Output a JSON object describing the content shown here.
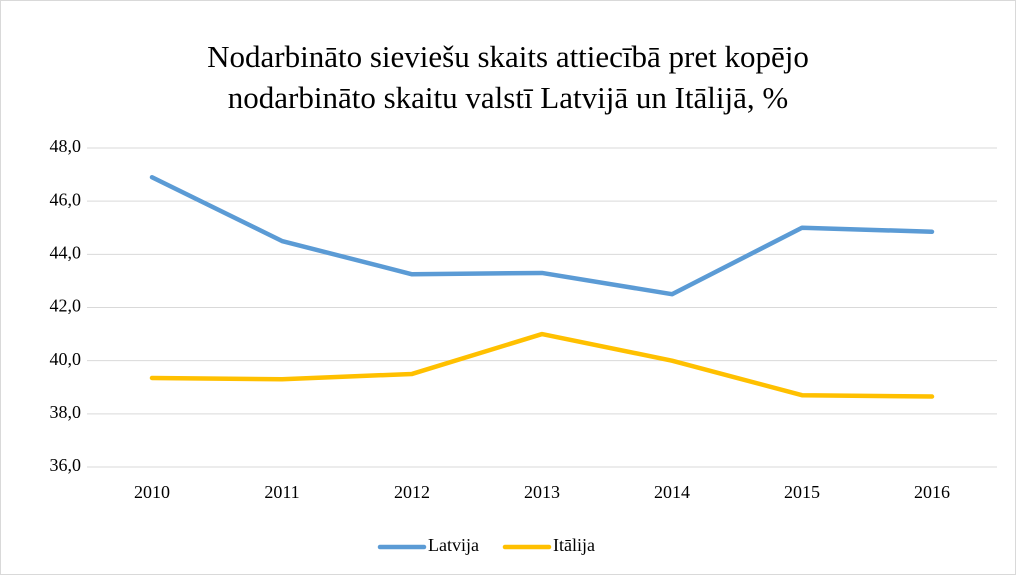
{
  "chart_data": {
    "type": "line",
    "title": [
      "Nodarbināto sieviešu skaits attiecībā pret kopējo",
      "nodarbināto skaitu valstī Latvijā un Itālijā, %"
    ],
    "categories": [
      "2010",
      "2011",
      "2012",
      "2013",
      "2014",
      "2015",
      "2016"
    ],
    "series": [
      {
        "name": "Latvija",
        "color": "#5b9bd5",
        "values": [
          46.9,
          44.5,
          43.25,
          43.3,
          42.5,
          45.0,
          44.85
        ]
      },
      {
        "name": "Itālija",
        "color": "#ffc000",
        "values": [
          39.35,
          39.3,
          39.5,
          41.0,
          40.0,
          38.7,
          38.65
        ]
      }
    ],
    "ylim": [
      36,
      48
    ],
    "yticks": [
      {
        "value": 36,
        "label": "36,0"
      },
      {
        "value": 38,
        "label": "38,0"
      },
      {
        "value": 40,
        "label": "40,0"
      },
      {
        "value": 42,
        "label": "42,0"
      },
      {
        "value": 44,
        "label": "44,0"
      },
      {
        "value": 46,
        "label": "46,0"
      },
      {
        "value": 48,
        "label": "48,0"
      }
    ],
    "grid": true,
    "legend": "bottom"
  }
}
